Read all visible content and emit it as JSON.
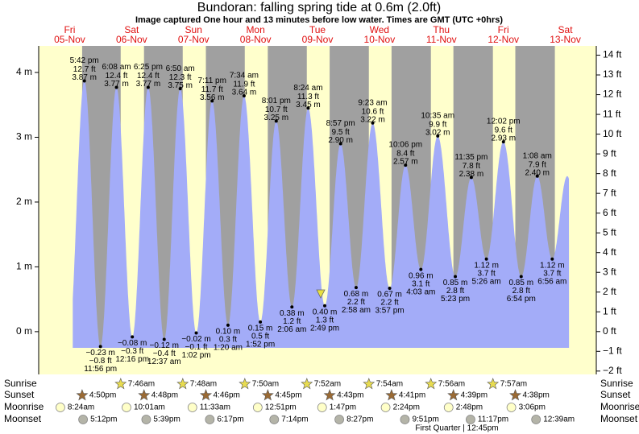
{
  "header": {
    "title": "Bundoran: falling  spring tide at 0.6m (2.0ft)",
    "subtitle": "Image captured One hour and 13 minutes before low water. Times are GMT (UTC +0hrs)"
  },
  "chart_data": {
    "type": "area",
    "ylim": [
      -0.66,
      4.41
    ],
    "yticks": [
      {
        "value": 0,
        "label": "0 m"
      },
      {
        "value": 1,
        "label": "1 m"
      },
      {
        "value": 2,
        "label": "2 m"
      },
      {
        "value": 3,
        "label": "3 m"
      },
      {
        "value": 4,
        "label": "4 m"
      }
    ],
    "y2lim": [
      -2.17,
      14.47
    ],
    "y2ticks": [
      {
        "value": -2,
        "label": "−2 ft"
      },
      {
        "value": -1,
        "label": "−1 ft"
      },
      {
        "value": 0,
        "label": "0 ft"
      },
      {
        "value": 1,
        "label": "1 ft"
      },
      {
        "value": 2,
        "label": "2 ft"
      },
      {
        "value": 3,
        "label": "3 ft"
      },
      {
        "value": 4,
        "label": "4 ft"
      },
      {
        "value": 5,
        "label": "5 ft"
      },
      {
        "value": 6,
        "label": "6 ft"
      },
      {
        "value": 7,
        "label": "7 ft"
      },
      {
        "value": 8,
        "label": "8 ft"
      },
      {
        "value": 9,
        "label": "9 ft"
      },
      {
        "value": 10,
        "label": "10 ft"
      },
      {
        "value": 11,
        "label": "11 ft"
      },
      {
        "value": 12,
        "label": "12 ft"
      },
      {
        "value": 13,
        "label": "13 ft"
      },
      {
        "value": 14,
        "label": "14 ft"
      }
    ],
    "colors": {
      "water": "#a3acf8",
      "night": "#a0a0a0",
      "day": "#ffffcc",
      "date": "#e01010"
    },
    "days": [
      {
        "day": "Fri",
        "date": "05-Nov",
        "sunrise": null,
        "sunset": "4:50pm",
        "moonrise": "8:24am",
        "moonset": "5:12pm",
        "tides": [
          {
            "time": "5:42 pm",
            "height": 3.87,
            "height_label": "3.87 m",
            "ft_label": "12.7 ft"
          },
          {
            "time": "11:56 pm",
            "height": -0.23,
            "height_label": "−0.23 m",
            "ft_label": "−0.8 ft"
          }
        ]
      },
      {
        "day": "Sat",
        "date": "06-Nov",
        "sunrise": "7:46am",
        "sunset": "4:48pm",
        "moonrise": "10:01am",
        "moonset": "5:39pm",
        "tides": [
          {
            "time": "6:08 am",
            "height": 3.77,
            "height_label": "3.77 m",
            "ft_label": "12.4 ft"
          },
          {
            "time": "12:16 pm",
            "height": -0.08,
            "height_label": "−0.08 m",
            "ft_label": "−0.3 ft"
          },
          {
            "time": "6:25 pm",
            "height": 3.77,
            "height_label": "3.77 m",
            "ft_label": "12.4 ft"
          }
        ]
      },
      {
        "day": "Sun",
        "date": "07-Nov",
        "sunrise": "7:48am",
        "sunset": "4:46pm",
        "moonrise": "11:33am",
        "moonset": "6:17pm",
        "tides": [
          {
            "time": "12:37 am",
            "height": -0.12,
            "height_label": "−0.12 m",
            "ft_label": "−0.4 ft"
          },
          {
            "time": "6:50 am",
            "height": 3.75,
            "height_label": "3.75 m",
            "ft_label": "12.3 ft"
          },
          {
            "time": "1:02 pm",
            "height": -0.02,
            "height_label": "−0.02 m",
            "ft_label": "−0.1 ft"
          },
          {
            "time": "7:11 pm",
            "height": 3.56,
            "height_label": "3.56 m",
            "ft_label": "11.7 ft"
          }
        ]
      },
      {
        "day": "Mon",
        "date": "08-Nov",
        "sunrise": "7:50am",
        "sunset": "4:45pm",
        "moonrise": "12:51pm",
        "moonset": "7:14pm",
        "tides": [
          {
            "time": "1:20 am",
            "height": 0.1,
            "height_label": "0.10 m",
            "ft_label": "0.3 ft"
          },
          {
            "time": "7:34 am",
            "height": 3.64,
            "height_label": "3.64 m",
            "ft_label": "11.9 ft"
          },
          {
            "time": "1:52 pm",
            "height": 0.15,
            "height_label": "0.15 m",
            "ft_label": "0.5 ft"
          },
          {
            "time": "8:01 pm",
            "height": 3.25,
            "height_label": "3.25 m",
            "ft_label": "10.7 ft"
          }
        ]
      },
      {
        "day": "Tue",
        "date": "09-Nov",
        "sunrise": "7:52am",
        "sunset": "4:43pm",
        "moonrise": "1:47pm",
        "moonset": "8:27pm",
        "tides": [
          {
            "time": "2:06 am",
            "height": 0.38,
            "height_label": "0.38 m",
            "ft_label": "1.2 ft"
          },
          {
            "time": "8:24 am",
            "height": 3.45,
            "height_label": "3.45 m",
            "ft_label": "11.3 ft"
          },
          {
            "time": "2:49 pm",
            "height": 0.4,
            "height_label": "0.40 m",
            "ft_label": "1.3 ft"
          },
          {
            "time": "8:57 pm",
            "height": 2.9,
            "height_label": "2.90 m",
            "ft_label": "9.5 ft"
          }
        ]
      },
      {
        "day": "Wed",
        "date": "10-Nov",
        "sunrise": "7:54am",
        "sunset": "4:41pm",
        "moonrise": "2:24pm",
        "moonset": "9:51pm",
        "tides": [
          {
            "time": "2:58 am",
            "height": 0.68,
            "height_label": "0.68 m",
            "ft_label": "2.2 ft"
          },
          {
            "time": "9:23 am",
            "height": 3.22,
            "height_label": "3.22 m",
            "ft_label": "10.6 ft"
          },
          {
            "time": "3:57 pm",
            "height": 0.67,
            "height_label": "0.67 m",
            "ft_label": "2.2 ft"
          },
          {
            "time": "10:06 pm",
            "height": 2.57,
            "height_label": "2.57 m",
            "ft_label": "8.4 ft"
          }
        ]
      },
      {
        "day": "Thu",
        "date": "11-Nov",
        "sunrise": "7:56am",
        "sunset": "4:39pm",
        "moonrise": "2:48pm",
        "moonset": "11:17pm",
        "tides": [
          {
            "time": "4:03 am",
            "height": 0.96,
            "height_label": "0.96 m",
            "ft_label": "3.1 ft"
          },
          {
            "time": "10:35 am",
            "height": 3.02,
            "height_label": "3.02 m",
            "ft_label": "9.9 ft"
          },
          {
            "time": "5:23 pm",
            "height": 0.85,
            "height_label": "0.85 m",
            "ft_label": "2.8 ft"
          },
          {
            "time": "11:35 pm",
            "height": 2.38,
            "height_label": "2.38 m",
            "ft_label": "7.8 ft"
          }
        ]
      },
      {
        "day": "Fri",
        "date": "12-Nov",
        "sunrise": "7:57am",
        "sunset": "4:38pm",
        "moonrise": "3:06pm",
        "moonset": null,
        "tides": [
          {
            "time": "5:26 am",
            "height": 1.12,
            "height_label": "1.12 m",
            "ft_label": "3.7 ft"
          },
          {
            "time": "12:02 pm",
            "height": 2.93,
            "height_label": "2.93 m",
            "ft_label": "9.6 ft"
          },
          {
            "time": "6:54 pm",
            "height": 0.85,
            "height_label": "0.85 m",
            "ft_label": "2.8 ft"
          }
        ]
      },
      {
        "day": "Sat",
        "date": "13-Nov",
        "sunrise": null,
        "sunset": null,
        "moonrise": null,
        "moonset": "12:39am",
        "tides": [
          {
            "time": "1:08 am",
            "height": 2.4,
            "height_label": "2.40 m",
            "ft_label": "7.9 ft"
          },
          {
            "time": "6:56 am",
            "height": 1.12,
            "height_label": "1.12 m",
            "ft_label": "3.7 ft"
          }
        ]
      }
    ]
  },
  "rows": [
    "Sunrise",
    "Sunset",
    "Moonrise",
    "Moonset"
  ],
  "moon_phase_label": "First Quarter | 12:45pm"
}
